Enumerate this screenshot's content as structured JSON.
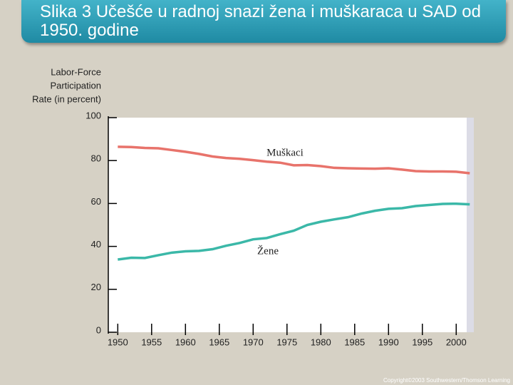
{
  "chart_data": {
    "type": "line",
    "title": "Slika 3 Učešće u radnoj snazi žena i muškaraca u SAD od 1950. godine",
    "ylabel": [
      "Labor-Force",
      "Participation",
      "Rate (in percent)"
    ],
    "x": [
      1950,
      1952,
      1954,
      1956,
      1958,
      1960,
      1962,
      1964,
      1966,
      1968,
      1970,
      1972,
      1974,
      1976,
      1978,
      1980,
      1982,
      1984,
      1986,
      1988,
      1990,
      1992,
      1994,
      1996,
      1998,
      2000,
      2002
    ],
    "series": [
      {
        "name": "Muškaci",
        "color": "#e8736b",
        "values": [
          86.4,
          86.3,
          85.9,
          85.7,
          84.9,
          84.1,
          83.1,
          81.9,
          81.2,
          80.8,
          80.2,
          79.5,
          79.0,
          77.8,
          77.9,
          77.4,
          76.6,
          76.4,
          76.3,
          76.2,
          76.4,
          75.8,
          75.1,
          74.9,
          74.9,
          74.8,
          74.1
        ]
      },
      {
        "name": "Žene",
        "color": "#3bb8a8",
        "values": [
          33.9,
          34.7,
          34.6,
          35.9,
          37.1,
          37.7,
          37.9,
          38.7,
          40.3,
          41.6,
          43.3,
          43.9,
          45.7,
          47.3,
          50.0,
          51.5,
          52.6,
          53.6,
          55.3,
          56.6,
          57.5,
          57.8,
          58.8,
          59.3,
          59.8,
          59.9,
          59.6
        ]
      }
    ],
    "xlim": [
      1948.6,
      2002.6
    ],
    "ylim": [
      0,
      100
    ],
    "xticks": [
      1950,
      1955,
      1960,
      1965,
      1970,
      1975,
      1980,
      1985,
      1990,
      1995,
      2000
    ],
    "yticks": [
      0,
      20,
      40,
      60,
      80,
      100
    ],
    "grid": false
  },
  "footer": "Copyright©2003 Southwestern/Thomson Learning"
}
